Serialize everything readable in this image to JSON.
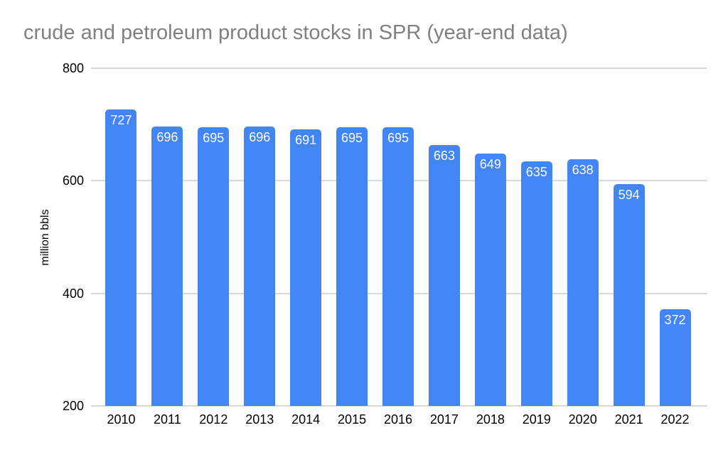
{
  "title": "crude and petroleum product stocks in SPR (year-end data)",
  "chart_data": {
    "type": "bar",
    "title": "crude and petroleum product stocks in SPR (year-end data)",
    "categories": [
      "2010",
      "2011",
      "2012",
      "2013",
      "2014",
      "2015",
      "2016",
      "2017",
      "2018",
      "2019",
      "2020",
      "2021",
      "2022"
    ],
    "values": [
      727,
      696,
      695,
      696,
      691,
      695,
      695,
      663,
      649,
      635,
      638,
      594,
      372
    ],
    "xlabel": "",
    "ylabel": "million bbls",
    "ylim": [
      200,
      800
    ],
    "yticks": [
      200,
      400,
      600,
      800
    ],
    "grid": true,
    "legend_position": "none",
    "value_labels": "inside-top",
    "colors": {
      "bar": "#4285f4",
      "bar_value_label": "#ffffff",
      "title": "#808080",
      "axis_text": "#000000",
      "gridline": "#d9d9d9",
      "background": "#ffffff"
    }
  }
}
